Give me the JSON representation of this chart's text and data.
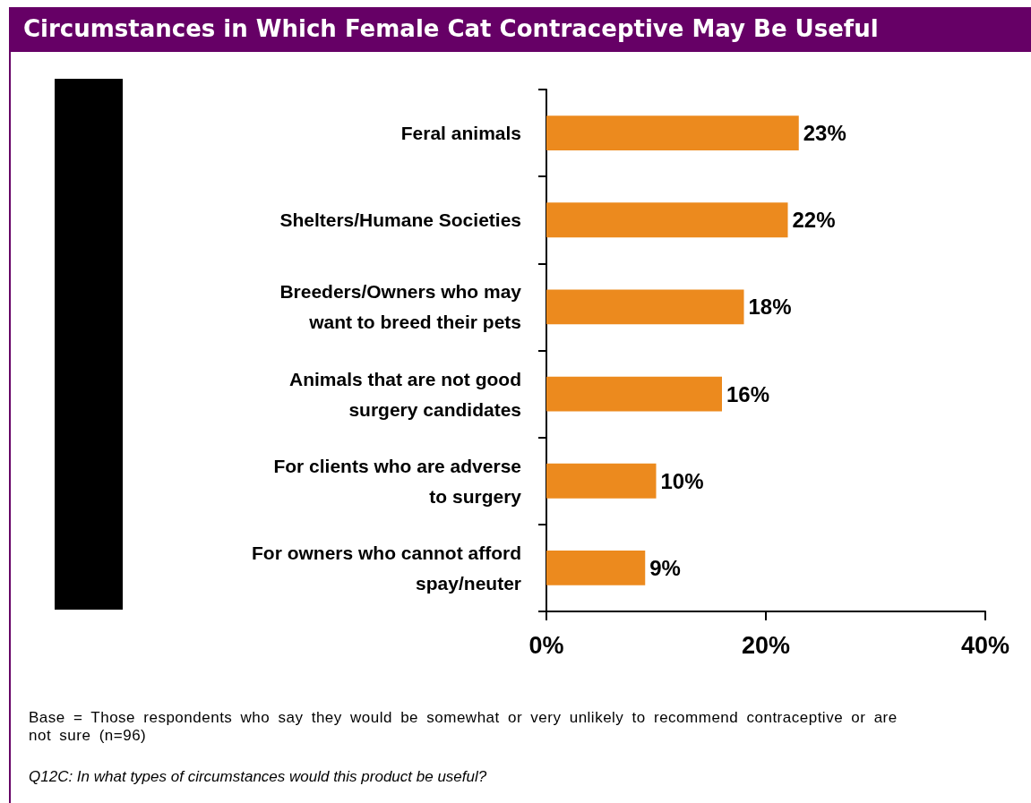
{
  "chart_data": {
    "type": "bar",
    "orientation": "horizontal",
    "title": "Circumstances in Which Female Cat Contraceptive May Be Useful",
    "categories": [
      "Feral animals",
      "Shelters/Humane Societies",
      "Breeders/Owners who may\nwant to breed their pets",
      "Animals that are not good\nsurgery candidates",
      "For clients who are adverse\nto surgery",
      "For owners who cannot afford\nspay/neuter"
    ],
    "values": [
      23,
      22,
      18,
      16,
      10,
      9
    ],
    "value_labels": [
      "23%",
      "22%",
      "18%",
      "16%",
      "10%",
      "9%"
    ],
    "color": "#ec8a1e",
    "xlim": [
      0,
      40
    ],
    "xticks": [
      {
        "value": 0,
        "label": "0%"
      },
      {
        "value": 20,
        "label": "20%"
      },
      {
        "value": 40,
        "label": "40%"
      }
    ],
    "annotations": [
      "Base = Those respondents who say they would be somewhat or very unlikely to recommend contraceptive or are not sure (n=96)",
      "Q12C: In what types of circumstances would this product be useful?"
    ]
  }
}
